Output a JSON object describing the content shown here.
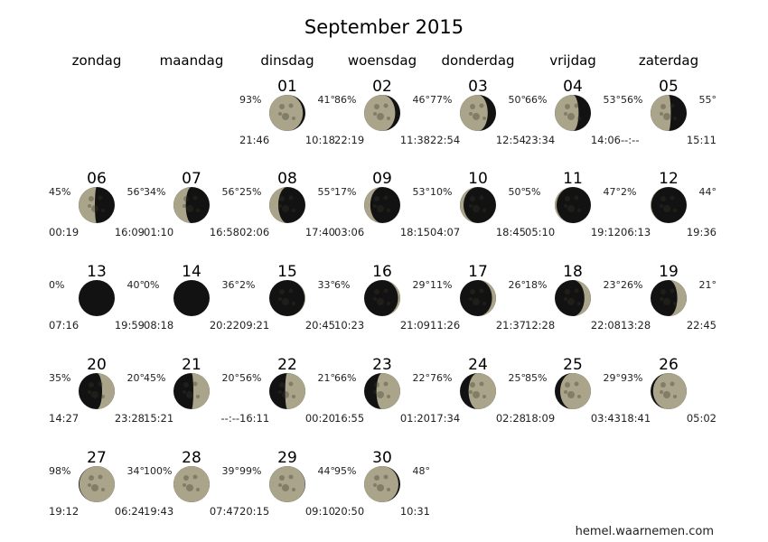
{
  "title": "September 2015",
  "weekdays": [
    "zondag",
    "maandag",
    "dinsdag",
    "woensdag",
    "donderdag",
    "vrijdag",
    "zaterdag"
  ],
  "first_weekday_index": 2,
  "colors": {
    "moon_lit": "#aaa48a",
    "moon_dark": "#121212"
  },
  "days": [
    {
      "day": "01",
      "illumination": "93%",
      "altitude": "41°",
      "rise": "21:46",
      "set": "10:18",
      "phase": "waning"
    },
    {
      "day": "02",
      "illumination": "86%",
      "altitude": "46°",
      "rise": "22:19",
      "set": "11:38",
      "phase": "waning"
    },
    {
      "day": "03",
      "illumination": "77%",
      "altitude": "50°",
      "rise": "22:54",
      "set": "12:54",
      "phase": "waning"
    },
    {
      "day": "04",
      "illumination": "66%",
      "altitude": "53°",
      "rise": "23:34",
      "set": "14:06",
      "phase": "waning"
    },
    {
      "day": "05",
      "illumination": "56%",
      "altitude": "55°",
      "rise": "--:--",
      "set": "15:11",
      "phase": "waning"
    },
    {
      "day": "06",
      "illumination": "45%",
      "altitude": "56°",
      "rise": "00:19",
      "set": "16:09",
      "phase": "waning"
    },
    {
      "day": "07",
      "illumination": "34%",
      "altitude": "56°",
      "rise": "01:10",
      "set": "16:58",
      "phase": "waning"
    },
    {
      "day": "08",
      "illumination": "25%",
      "altitude": "55°",
      "rise": "02:06",
      "set": "17:40",
      "phase": "waning"
    },
    {
      "day": "09",
      "illumination": "17%",
      "altitude": "53°",
      "rise": "03:06",
      "set": "18:15",
      "phase": "waning"
    },
    {
      "day": "10",
      "illumination": "10%",
      "altitude": "50°",
      "rise": "04:07",
      "set": "18:45",
      "phase": "waning"
    },
    {
      "day": "11",
      "illumination": "5%",
      "altitude": "47°",
      "rise": "05:10",
      "set": "19:12",
      "phase": "waning"
    },
    {
      "day": "12",
      "illumination": "2%",
      "altitude": "44°",
      "rise": "06:13",
      "set": "19:36",
      "phase": "waning"
    },
    {
      "day": "13",
      "illumination": "0%",
      "altitude": "40°",
      "rise": "07:16",
      "set": "19:59",
      "phase": "waning"
    },
    {
      "day": "14",
      "illumination": "0%",
      "altitude": "36°",
      "rise": "08:18",
      "set": "20:22",
      "phase": "waxing"
    },
    {
      "day": "15",
      "illumination": "2%",
      "altitude": "33°",
      "rise": "09:21",
      "set": "20:45",
      "phase": "waxing"
    },
    {
      "day": "16",
      "illumination": "6%",
      "altitude": "29°",
      "rise": "10:23",
      "set": "21:09",
      "phase": "waxing"
    },
    {
      "day": "17",
      "illumination": "11%",
      "altitude": "26°",
      "rise": "11:26",
      "set": "21:37",
      "phase": "waxing"
    },
    {
      "day": "18",
      "illumination": "18%",
      "altitude": "23°",
      "rise": "12:28",
      "set": "22:08",
      "phase": "waxing"
    },
    {
      "day": "19",
      "illumination": "26%",
      "altitude": "21°",
      "rise": "13:28",
      "set": "22:45",
      "phase": "waxing"
    },
    {
      "day": "20",
      "illumination": "35%",
      "altitude": "20°",
      "rise": "14:27",
      "set": "23:28",
      "phase": "waxing"
    },
    {
      "day": "21",
      "illumination": "45%",
      "altitude": "20°",
      "rise": "15:21",
      "set": "--:--",
      "phase": "waxing"
    },
    {
      "day": "22",
      "illumination": "56%",
      "altitude": "21°",
      "rise": "16:11",
      "set": "00:20",
      "phase": "waxing"
    },
    {
      "day": "23",
      "illumination": "66%",
      "altitude": "22°",
      "rise": "16:55",
      "set": "01:20",
      "phase": "waxing"
    },
    {
      "day": "24",
      "illumination": "76%",
      "altitude": "25°",
      "rise": "17:34",
      "set": "02:28",
      "phase": "waxing"
    },
    {
      "day": "25",
      "illumination": "85%",
      "altitude": "29°",
      "rise": "18:09",
      "set": "03:43",
      "phase": "waxing"
    },
    {
      "day": "26",
      "illumination": "93%",
      "altitude": "",
      "rise": "18:41",
      "set": "05:02",
      "phase": "waxing"
    },
    {
      "day": "27",
      "illumination": "98%",
      "altitude": "34°",
      "rise": "19:12",
      "set": "06:24",
      "phase": "waxing"
    },
    {
      "day": "28",
      "illumination": "100%",
      "altitude": "39°",
      "rise": "19:43",
      "set": "07:47",
      "phase": "waxing"
    },
    {
      "day": "29",
      "illumination": "99%",
      "altitude": "44°",
      "rise": "20:15",
      "set": "09:10",
      "phase": "waning"
    },
    {
      "day": "30",
      "illumination": "95%",
      "altitude": "48°",
      "rise": "20:50",
      "set": "10:31",
      "phase": "waning"
    }
  ],
  "credit": "hemel.waarnemen.com"
}
